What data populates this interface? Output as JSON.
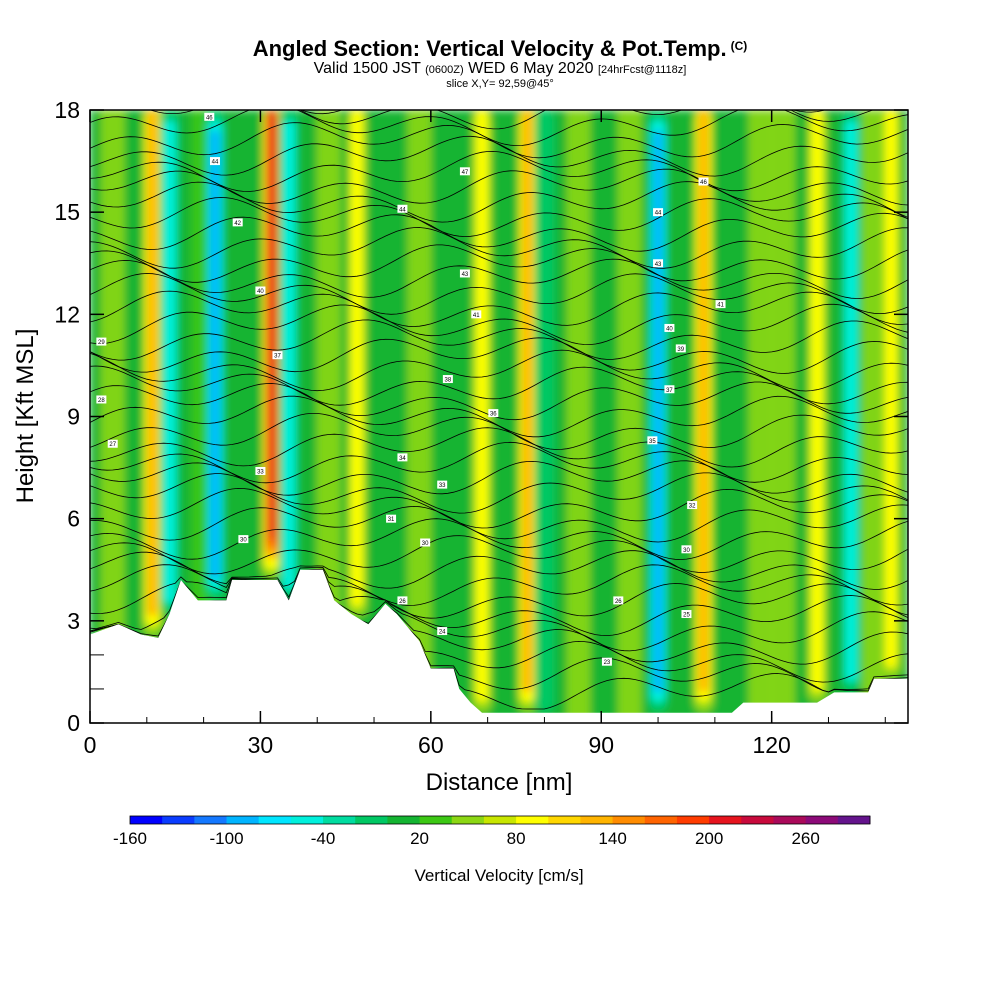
{
  "header": {
    "title": "Angled Section: Vertical Velocity & Pot.Temp.",
    "title_unit": "(C)",
    "valid_prefix": "Valid 1500 JST",
    "valid_utc": "(0600Z)",
    "valid_date": "WED 6 May 2020",
    "forecast": "[24hrFcst@1118z]",
    "slice": "slice X,Y= 92,59@45°"
  },
  "chart_data": {
    "type": "heatmap",
    "xlabel": "Distance [nm]",
    "ylabel": "Height [Kft MSL]",
    "xlim": [
      0,
      144
    ],
    "ylim": [
      0,
      18
    ],
    "x_ticks": [
      0,
      30,
      60,
      90,
      120
    ],
    "y_ticks": [
      0,
      3,
      6,
      9,
      12,
      15,
      18
    ],
    "colorbar": {
      "label": "Vertical Velocity [cm/s]",
      "min": -160,
      "max": 300,
      "step": 20,
      "tick_values": [
        -160,
        -100,
        -40,
        20,
        80,
        140,
        200,
        260
      ],
      "colors": [
        "#0000ff",
        "#0a3cff",
        "#1478ff",
        "#00b4ff",
        "#00e6ff",
        "#00f0dc",
        "#00dca0",
        "#00c864",
        "#14b432",
        "#3cc814",
        "#8cd714",
        "#c8e600",
        "#ffff00",
        "#ffd700",
        "#ffb400",
        "#ff8c00",
        "#ff6400",
        "#ff3c00",
        "#e6141e",
        "#c80a3c",
        "#aa0a5a",
        "#8c0a78",
        "#64148c"
      ]
    },
    "terrain_height": [
      [
        0,
        2.6
      ],
      [
        5,
        2.9
      ],
      [
        9,
        2.6
      ],
      [
        12,
        2.5
      ],
      [
        14,
        3.2
      ],
      [
        16,
        4.2
      ],
      [
        19,
        3.6
      ],
      [
        24,
        3.6
      ],
      [
        25,
        4.2
      ],
      [
        33,
        4.2
      ],
      [
        35,
        3.6
      ],
      [
        37,
        4.5
      ],
      [
        41,
        4.5
      ],
      [
        43,
        3.6
      ],
      [
        46,
        3.2
      ],
      [
        49,
        2.9
      ],
      [
        52,
        3.5
      ],
      [
        54,
        3.2
      ],
      [
        58,
        2.4
      ],
      [
        60,
        1.6
      ],
      [
        64,
        1.6
      ],
      [
        65,
        1.0
      ],
      [
        67,
        0.6
      ],
      [
        69,
        0.3
      ],
      [
        113,
        0.3
      ],
      [
        115,
        0.6
      ],
      [
        128,
        0.6
      ],
      [
        131,
        0.9
      ],
      [
        137,
        0.9
      ],
      [
        138,
        1.3
      ],
      [
        144,
        1.3
      ]
    ],
    "updraft_columns": [
      {
        "x": 11,
        "peak": 120
      },
      {
        "x": 32,
        "peak": 200
      },
      {
        "x": 47,
        "peak": 80
      },
      {
        "x": 69,
        "peak": 100
      },
      {
        "x": 77,
        "peak": 120
      },
      {
        "x": 108,
        "peak": 120
      },
      {
        "x": 128,
        "peak": 100
      },
      {
        "x": 141,
        "peak": 80
      }
    ],
    "downdraft_columns": [
      {
        "x": 14,
        "peak": -60
      },
      {
        "x": 22,
        "peak": -100
      },
      {
        "x": 35,
        "peak": -80
      },
      {
        "x": 80,
        "peak": -40
      },
      {
        "x": 100,
        "peak": -100
      },
      {
        "x": 134,
        "peak": -60
      }
    ],
    "theta_labels": [
      {
        "x": 2,
        "y": 11.2,
        "text": "29"
      },
      {
        "x": 2,
        "y": 9.5,
        "text": "28"
      },
      {
        "x": 4,
        "y": 8.2,
        "text": "27"
      },
      {
        "x": 21,
        "y": 17.8,
        "text": "46"
      },
      {
        "x": 22,
        "y": 16.5,
        "text": "44"
      },
      {
        "x": 26,
        "y": 14.7,
        "text": "42"
      },
      {
        "x": 30,
        "y": 12.7,
        "text": "40"
      },
      {
        "x": 33,
        "y": 10.8,
        "text": "37"
      },
      {
        "x": 30,
        "y": 7.4,
        "text": "33"
      },
      {
        "x": 27,
        "y": 5.4,
        "text": "30"
      },
      {
        "x": 55,
        "y": 3.6,
        "text": "26"
      },
      {
        "x": 53,
        "y": 6.0,
        "text": "31"
      },
      {
        "x": 55,
        "y": 7.8,
        "text": "34"
      },
      {
        "x": 62,
        "y": 7.0,
        "text": "33"
      },
      {
        "x": 59,
        "y": 5.3,
        "text": "30"
      },
      {
        "x": 62,
        "y": 2.7,
        "text": "24"
      },
      {
        "x": 66,
        "y": 16.2,
        "text": "47"
      },
      {
        "x": 55,
        "y": 15.1,
        "text": "44"
      },
      {
        "x": 66,
        "y": 13.2,
        "text": "43"
      },
      {
        "x": 68,
        "y": 12.0,
        "text": "41"
      },
      {
        "x": 63,
        "y": 10.1,
        "text": "38"
      },
      {
        "x": 71,
        "y": 9.1,
        "text": "36"
      },
      {
        "x": 108,
        "y": 15.9,
        "text": "46"
      },
      {
        "x": 100,
        "y": 15.0,
        "text": "44"
      },
      {
        "x": 100,
        "y": 13.5,
        "text": "43"
      },
      {
        "x": 111,
        "y": 12.3,
        "text": "41"
      },
      {
        "x": 102,
        "y": 11.6,
        "text": "40"
      },
      {
        "x": 104,
        "y": 11.0,
        "text": "39"
      },
      {
        "x": 102,
        "y": 9.8,
        "text": "37"
      },
      {
        "x": 99,
        "y": 8.3,
        "text": "35"
      },
      {
        "x": 106,
        "y": 6.4,
        "text": "32"
      },
      {
        "x": 105,
        "y": 5.1,
        "text": "30"
      },
      {
        "x": 93,
        "y": 3.6,
        "text": "26"
      },
      {
        "x": 105,
        "y": 3.2,
        "text": "25"
      },
      {
        "x": 91,
        "y": 1.8,
        "text": "23"
      }
    ]
  }
}
